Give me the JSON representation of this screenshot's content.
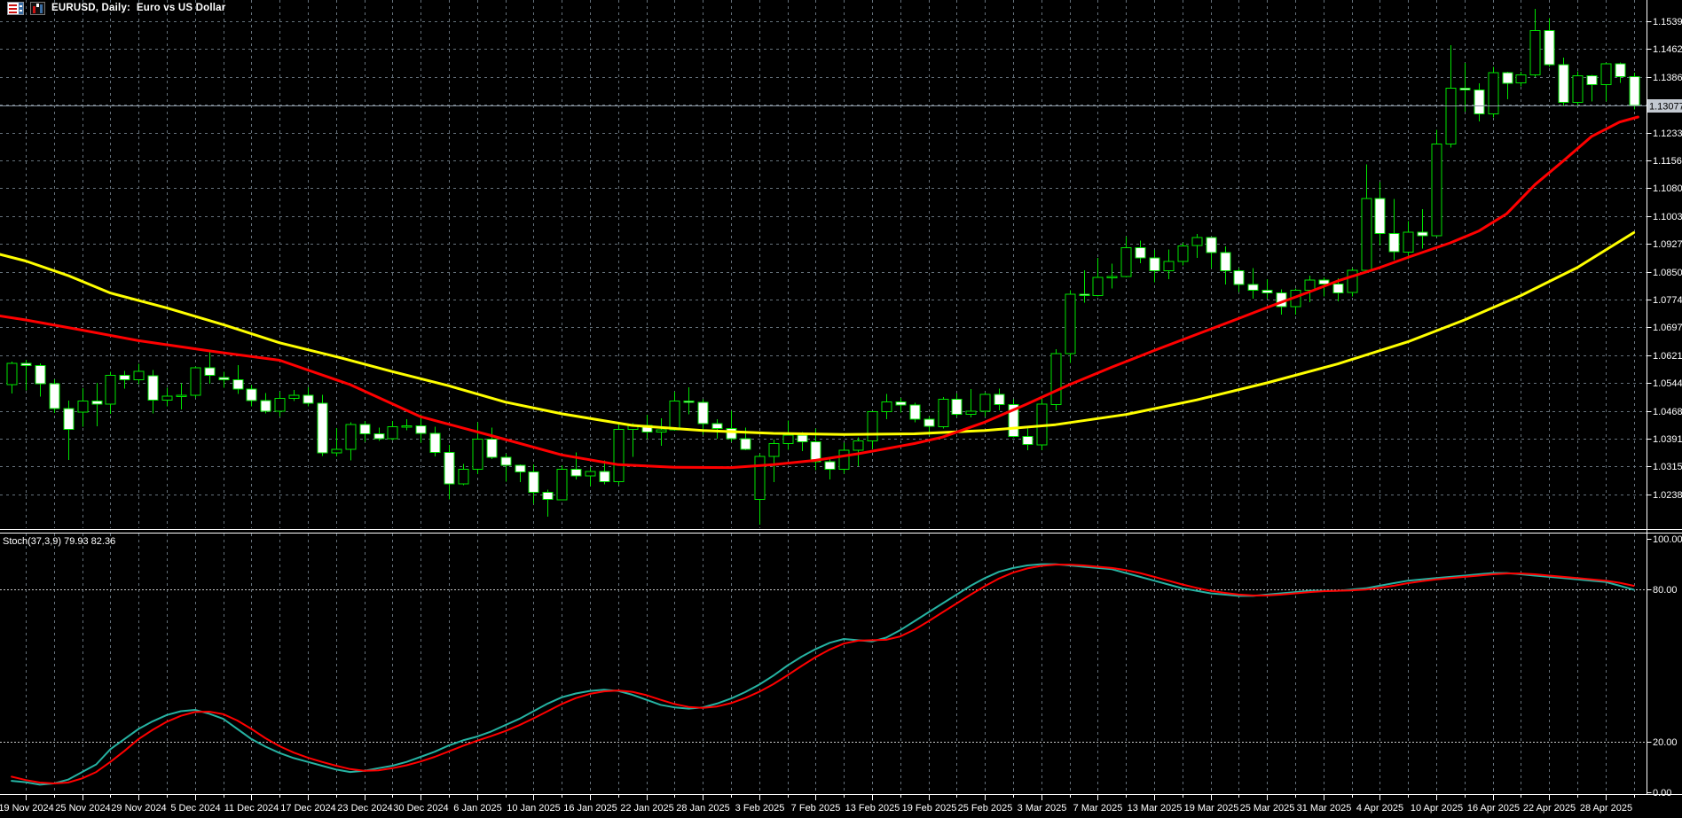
{
  "header": {
    "title": "EURUSD, Daily:  Euro vs US Dollar",
    "icons": [
      "chart-list-icon",
      "bar-chart-icon"
    ]
  },
  "colors": {
    "background": "#000000",
    "grid": "#66727C",
    "candle_outline": "#00E400",
    "bull_fill": "#000000",
    "bear_fill": "#FFFFFF",
    "ma_fast": "#FF0000",
    "ma_slow": "#FFFF00",
    "stoch_main": "#26B2A2",
    "stoch_signal": "#FF0000",
    "axis_text": "#FFFFFF",
    "axis_line": "#FFFFFF",
    "level_line": "#C8C8C8",
    "current_price_line": "#8A95A1",
    "current_price_box": "#C3C9D1",
    "current_price_text": "#000000"
  },
  "y_axis": {
    "ticks": [
      "1.15390",
      "1.14625",
      "1.13860",
      "1.13095",
      "1.12330",
      "1.11565",
      "1.10800",
      "1.10035",
      "1.09270",
      "1.08505",
      "1.07740",
      "1.06975",
      "1.06210",
      "1.05445",
      "1.04680",
      "1.03915",
      "1.03150",
      "1.02385"
    ],
    "top_tick_value": 1.1539,
    "tick_step": 0.00765,
    "current_price": "1.13077"
  },
  "x_axis": {
    "labels": [
      {
        "text": "19 Nov 2024",
        "i": 0
      },
      {
        "text": "25 Nov 2024",
        "i": 4
      },
      {
        "text": "29 Nov 2024",
        "i": 8
      },
      {
        "text": "5 Dec 2024",
        "i": 12
      },
      {
        "text": "11 Dec 2024",
        "i": 16
      },
      {
        "text": "17 Dec 2024",
        "i": 20
      },
      {
        "text": "23 Dec 2024",
        "i": 24
      },
      {
        "text": "30 Dec 2024",
        "i": 28
      },
      {
        "text": "6 Jan 2025",
        "i": 32
      },
      {
        "text": "10 Jan 2025",
        "i": 36
      },
      {
        "text": "16 Jan 2025",
        "i": 40
      },
      {
        "text": "22 Jan 2025",
        "i": 44
      },
      {
        "text": "28 Jan 2025",
        "i": 48
      },
      {
        "text": "3 Feb 2025",
        "i": 52
      },
      {
        "text": "7 Feb 2025",
        "i": 56
      },
      {
        "text": "13 Feb 2025",
        "i": 60
      },
      {
        "text": "19 Feb 2025",
        "i": 64
      },
      {
        "text": "25 Feb 2025",
        "i": 68
      },
      {
        "text": "3 Mar 2025",
        "i": 72
      },
      {
        "text": "7 Mar 2025",
        "i": 76
      },
      {
        "text": "13 Mar 2025",
        "i": 80
      },
      {
        "text": "19 Mar 2025",
        "i": 84
      },
      {
        "text": "25 Mar 2025",
        "i": 88
      },
      {
        "text": "31 Mar 2025",
        "i": 92
      },
      {
        "text": "4 Apr 2025",
        "i": 96
      },
      {
        "text": "10 Apr 2025",
        "i": 100
      },
      {
        "text": "16 Apr 2025",
        "i": 104
      },
      {
        "text": "22 Apr 2025",
        "i": 108
      },
      {
        "text": "28 Apr 2025",
        "i": 112
      }
    ]
  },
  "stoch_panel": {
    "label": "Stoch(37,3,9) 79.93 82.36",
    "ticks": [
      {
        "text": "100.00",
        "v": 100
      },
      {
        "text": "80.00",
        "v": 80
      },
      {
        "text": "20.00",
        "v": 20
      },
      {
        "text": "0.00",
        "v": 0
      }
    ],
    "levels": [
      80,
      20
    ]
  },
  "chart_data": {
    "type": "candlestick",
    "symbol": "EURUSD",
    "timeframe": "Daily",
    "title": "EURUSD, Daily:  Euro vs US Dollar",
    "ylim": [
      1.0141,
      1.1586
    ],
    "start_index": -1,
    "candles": [
      [
        1.054,
        1.0603,
        1.0516,
        1.0598
      ],
      [
        1.0598,
        1.0608,
        1.0524,
        1.0592
      ],
      [
        1.0592,
        1.0598,
        1.0507,
        1.0542
      ],
      [
        1.0542,
        1.0555,
        1.0462,
        1.0474
      ],
      [
        1.0474,
        1.0496,
        1.0333,
        1.0417
      ],
      [
        1.0465,
        1.053,
        1.0424,
        1.0495
      ],
      [
        1.0495,
        1.0545,
        1.0425,
        1.0487
      ],
      [
        1.0487,
        1.0575,
        1.046,
        1.0566
      ],
      [
        1.0566,
        1.0578,
        1.0529,
        1.0554
      ],
      [
        1.0554,
        1.0597,
        1.0541,
        1.0577
      ],
      [
        1.0565,
        1.058,
        1.0461,
        1.0498
      ],
      [
        1.0498,
        1.0532,
        1.048,
        1.0509
      ],
      [
        1.0509,
        1.0544,
        1.0472,
        1.0511
      ],
      [
        1.0511,
        1.059,
        1.0503,
        1.0586
      ],
      [
        1.0586,
        1.0629,
        1.0543,
        1.0566
      ],
      [
        1.056,
        1.0576,
        1.0532,
        1.0554
      ],
      [
        1.0554,
        1.0594,
        1.0515,
        1.0528
      ],
      [
        1.0528,
        1.0539,
        1.048,
        1.0496
      ],
      [
        1.0496,
        1.0517,
        1.0461,
        1.0467
      ],
      [
        1.0467,
        1.0521,
        1.0452,
        1.0502
      ],
      [
        1.0502,
        1.0525,
        1.0495,
        1.0511
      ],
      [
        1.0511,
        1.0533,
        1.048,
        1.0489
      ],
      [
        1.0489,
        1.0512,
        1.0344,
        1.0353
      ],
      [
        1.0353,
        1.0421,
        1.0343,
        1.0362
      ],
      [
        1.0362,
        1.0436,
        1.0332,
        1.043
      ],
      [
        1.043,
        1.044,
        1.0383,
        1.0405
      ],
      [
        1.0405,
        1.0422,
        1.0386,
        1.0392
      ],
      [
        1.0392,
        1.044,
        1.0388,
        1.0424
      ],
      [
        1.0424,
        1.0445,
        1.0415,
        1.0427
      ],
      [
        1.0427,
        1.0458,
        1.0381,
        1.0406
      ],
      [
        1.0406,
        1.0424,
        1.0343,
        1.0354
      ],
      [
        1.0354,
        1.0375,
        1.0225,
        1.0267
      ],
      [
        1.0267,
        1.0322,
        1.0263,
        1.0308
      ],
      [
        1.0308,
        1.0437,
        1.0294,
        1.039
      ],
      [
        1.039,
        1.0422,
        1.0335,
        1.034
      ],
      [
        1.034,
        1.035,
        1.0273,
        1.0318
      ],
      [
        1.0318,
        1.0321,
        1.0272,
        1.03
      ],
      [
        1.03,
        1.0321,
        1.0213,
        1.0244
      ],
      [
        1.0244,
        1.0252,
        1.0177,
        1.0224
      ],
      [
        1.0224,
        1.0319,
        1.0222,
        1.0308
      ],
      [
        1.0308,
        1.0354,
        1.028,
        1.0289
      ],
      [
        1.0289,
        1.0312,
        1.0261,
        1.0301
      ],
      [
        1.0301,
        1.0332,
        1.0266,
        1.0273
      ],
      [
        1.0273,
        1.0434,
        1.0265,
        1.0417
      ],
      [
        1.0417,
        1.0434,
        1.0342,
        1.0428
      ],
      [
        1.0428,
        1.0457,
        1.039,
        1.041
      ],
      [
        1.041,
        1.0447,
        1.0372,
        1.0416
      ],
      [
        1.0416,
        1.0521,
        1.0413,
        1.0495
      ],
      [
        1.0495,
        1.0533,
        1.0458,
        1.0491
      ],
      [
        1.0491,
        1.05,
        1.0402,
        1.0433
      ],
      [
        1.0433,
        1.0445,
        1.0392,
        1.042
      ],
      [
        1.042,
        1.0468,
        1.0383,
        1.0392
      ],
      [
        1.0392,
        1.0422,
        1.036,
        1.0362
      ],
      [
        1.0224,
        1.035,
        1.0155,
        1.0343
      ],
      [
        1.0343,
        1.0389,
        1.0272,
        1.0378
      ],
      [
        1.0378,
        1.0442,
        1.0361,
        1.0401
      ],
      [
        1.0401,
        1.041,
        1.0358,
        1.0383
      ],
      [
        1.0383,
        1.042,
        1.0305,
        1.0328
      ],
      [
        1.0328,
        1.0335,
        1.028,
        1.0307
      ],
      [
        1.0307,
        1.038,
        1.0295,
        1.036
      ],
      [
        1.036,
        1.0395,
        1.0316,
        1.0385
      ],
      [
        1.0385,
        1.0467,
        1.0363,
        1.0466
      ],
      [
        1.0466,
        1.0514,
        1.0445,
        1.0492
      ],
      [
        1.0492,
        1.0504,
        1.0463,
        1.0484
      ],
      [
        1.0484,
        1.049,
        1.0436,
        1.0445
      ],
      [
        1.0445,
        1.0452,
        1.04,
        1.0425
      ],
      [
        1.0425,
        1.0506,
        1.042,
        1.05
      ],
      [
        1.05,
        1.0516,
        1.0451,
        1.0459
      ],
      [
        1.0459,
        1.0528,
        1.045,
        1.0467
      ],
      [
        1.0467,
        1.0518,
        1.0453,
        1.0513
      ],
      [
        1.0513,
        1.0529,
        1.047,
        1.0485
      ],
      [
        1.0485,
        1.05,
        1.0395,
        1.0398
      ],
      [
        1.0398,
        1.042,
        1.036,
        1.0375
      ],
      [
        1.0375,
        1.0503,
        1.036,
        1.0486
      ],
      [
        1.0486,
        1.0637,
        1.047,
        1.0625
      ],
      [
        1.0625,
        1.08,
        1.06,
        1.0789
      ],
      [
        1.0789,
        1.0854,
        1.0766,
        1.0785
      ],
      [
        1.0785,
        1.0888,
        1.0782,
        1.0835
      ],
      [
        1.0835,
        1.0873,
        1.0805,
        1.0837
      ],
      [
        1.0837,
        1.0947,
        1.0835,
        1.0917
      ],
      [
        1.0917,
        1.0936,
        1.0874,
        1.0888
      ],
      [
        1.0888,
        1.091,
        1.0822,
        1.0853
      ],
      [
        1.0853,
        1.0912,
        1.083,
        1.0879
      ],
      [
        1.0879,
        1.093,
        1.0868,
        1.0922
      ],
      [
        1.0922,
        1.0954,
        1.0888,
        1.0944
      ],
      [
        1.0944,
        1.0946,
        1.086,
        1.0903
      ],
      [
        1.0903,
        1.092,
        1.0815,
        1.0853
      ],
      [
        1.0853,
        1.086,
        1.0795,
        1.0815
      ],
      [
        1.0815,
        1.086,
        1.0777,
        1.08
      ],
      [
        1.08,
        1.083,
        1.0777,
        1.0792
      ],
      [
        1.0792,
        1.0802,
        1.0733,
        1.0754
      ],
      [
        1.0754,
        1.0805,
        1.0733,
        1.08
      ],
      [
        1.08,
        1.084,
        1.0767,
        1.0827
      ],
      [
        1.0827,
        1.0835,
        1.0783,
        1.0817
      ],
      [
        1.0817,
        1.0832,
        1.0769,
        1.0793
      ],
      [
        1.0793,
        1.086,
        1.0783,
        1.0854
      ],
      [
        1.0854,
        1.1146,
        1.0851,
        1.1052
      ],
      [
        1.1052,
        1.1097,
        1.0923,
        1.0956
      ],
      [
        1.0956,
        1.105,
        1.0882,
        1.0905
      ],
      [
        1.0905,
        1.099,
        1.0885,
        1.0959
      ],
      [
        1.0959,
        1.1022,
        1.0914,
        1.0949
      ],
      [
        1.0949,
        1.1241,
        1.0947,
        1.1201
      ],
      [
        1.1201,
        1.1473,
        1.1192,
        1.1355
      ],
      [
        1.1355,
        1.1424,
        1.129,
        1.135
      ],
      [
        1.135,
        1.1368,
        1.1264,
        1.1284
      ],
      [
        1.1284,
        1.1414,
        1.1275,
        1.1398
      ],
      [
        1.1398,
        1.14,
        1.1325,
        1.1369
      ],
      [
        1.1369,
        1.14,
        1.136,
        1.1392
      ],
      [
        1.1392,
        1.1573,
        1.1386,
        1.1513
      ],
      [
        1.1513,
        1.1547,
        1.1413,
        1.142
      ],
      [
        1.142,
        1.1439,
        1.1308,
        1.1316
      ],
      [
        1.1316,
        1.1401,
        1.1308,
        1.1389
      ],
      [
        1.1389,
        1.1392,
        1.1319,
        1.1365
      ],
      [
        1.1365,
        1.1424,
        1.1319,
        1.1422
      ],
      [
        1.1422,
        1.1426,
        1.137,
        1.1387
      ],
      [
        1.1387,
        1.1398,
        1.1297,
        1.13077
      ]
    ],
    "overlays": [
      {
        "name": "ma-fast",
        "color": "#FF0000",
        "points": [
          [
            -2,
            1.073
          ],
          [
            0,
            1.0718
          ],
          [
            4,
            1.069
          ],
          [
            8,
            1.0661
          ],
          [
            13,
            1.0633
          ],
          [
            18,
            1.0607
          ],
          [
            23,
            1.054
          ],
          [
            28,
            1.0452
          ],
          [
            33,
            1.04
          ],
          [
            38,
            1.0347
          ],
          [
            42,
            1.032
          ],
          [
            46,
            1.0313
          ],
          [
            50,
            1.0312
          ],
          [
            53,
            1.032
          ],
          [
            56,
            1.0332
          ],
          [
            59,
            1.035
          ],
          [
            63,
            1.0378
          ],
          [
            65,
            1.0396
          ],
          [
            68,
            1.0437
          ],
          [
            71,
            1.0487
          ],
          [
            74,
            1.054
          ],
          [
            77,
            1.0588
          ],
          [
            80,
            1.0634
          ],
          [
            83,
            1.0678
          ],
          [
            86,
            1.0722
          ],
          [
            88,
            1.0752
          ],
          [
            91,
            1.0795
          ],
          [
            93,
            1.0825
          ],
          [
            96,
            1.0862
          ],
          [
            98,
            1.089
          ],
          [
            101,
            1.093
          ],
          [
            103,
            1.0962
          ],
          [
            105,
            1.101
          ],
          [
            107,
            1.109
          ],
          [
            109,
            1.1155
          ],
          [
            111,
            1.1222
          ],
          [
            113,
            1.1262
          ],
          [
            114.3,
            1.1276
          ]
        ]
      },
      {
        "name": "ma-slow",
        "color": "#FFFF00",
        "points": [
          [
            -2,
            1.09
          ],
          [
            0,
            1.088
          ],
          [
            3,
            1.084
          ],
          [
            6,
            1.0792
          ],
          [
            10,
            1.0751
          ],
          [
            14,
            1.0705
          ],
          [
            18,
            1.0655
          ],
          [
            22,
            1.0617
          ],
          [
            26,
            1.0576
          ],
          [
            30,
            1.0537
          ],
          [
            34,
            1.0492
          ],
          [
            38,
            1.046
          ],
          [
            43,
            1.0428
          ],
          [
            48,
            1.0414
          ],
          [
            53,
            1.0406
          ],
          [
            58,
            1.0403
          ],
          [
            63,
            1.0405
          ],
          [
            68,
            1.0414
          ],
          [
            73,
            1.043
          ],
          [
            78,
            1.0458
          ],
          [
            83,
            1.0498
          ],
          [
            88,
            1.0545
          ],
          [
            93,
            1.0597
          ],
          [
            98,
            1.0658
          ],
          [
            102,
            1.0718
          ],
          [
            106,
            1.0785
          ],
          [
            110,
            1.0862
          ],
          [
            114,
            1.0958
          ]
        ]
      }
    ],
    "indicator": {
      "name": "Stochastic",
      "params": [
        37,
        3,
        9
      ],
      "main_value": "79.93",
      "signal_value": "82.36",
      "range": [
        0,
        100
      ],
      "levels": [
        80,
        20
      ],
      "k_seed": [
        8,
        6
      ],
      "k_values": [
        4.5,
        4,
        3,
        3.5,
        5,
        8,
        11,
        17,
        21,
        25,
        28,
        30.5,
        32,
        32.5,
        31,
        29,
        25,
        21,
        18,
        15.5,
        13.5,
        12,
        10.5,
        9,
        8,
        8.5,
        9.5,
        10.5,
        12,
        14,
        16,
        18.5,
        20.5,
        22,
        24,
        26.5,
        29,
        32,
        35,
        37.5,
        39,
        40,
        40.5,
        40,
        38.5,
        36.5,
        34.5,
        33.5,
        33,
        33.5,
        35,
        37,
        39.5,
        42.5,
        46,
        50,
        53.5,
        56.5,
        59,
        60.5,
        60,
        59.5,
        61,
        64,
        67.5,
        71,
        74.5,
        78,
        81.5,
        84.5,
        87,
        88.5,
        89.5,
        90,
        90,
        89.5,
        89,
        88.5,
        88,
        86.5,
        85,
        83.5,
        82,
        80.5,
        79.5,
        78.5,
        78,
        77.5,
        77.5,
        78,
        78.5,
        79,
        79.5,
        79.5,
        79.5,
        80,
        80.5,
        81.5,
        82.5,
        83.5,
        84,
        84.5,
        85,
        85.5,
        86,
        86.5,
        86.5,
        86,
        85.5,
        85,
        84.5,
        84,
        83.5,
        83,
        81.5,
        79.93
      ]
    }
  }
}
